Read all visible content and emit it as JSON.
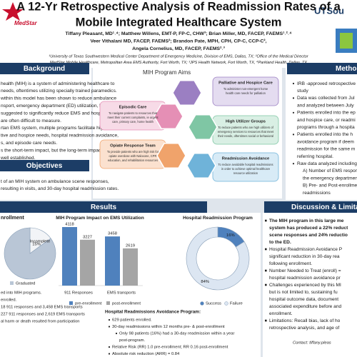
{
  "logos": {
    "left": "MedStar",
    "right": "UTSou"
  },
  "header": {
    "title": [
      "A 12-Yr Retrospective Analysis of Readmission Rates of a",
      "Mobile Integrated Healthcare System"
    ],
    "authors": [
      "Tiffany Pleasant, MD¹˒⁴; Matthew Willens, EMT-P, FP-C, CHW³; Brian Miller, MD, FACEP, FAEMS¹˒²˒⁴",
      "Veer Vithalani MD, FACEP, FAEMS²; Brandon Pate, MPH, CPH, CP-C, CCP-C²,",
      "Angela Cornelius, MD, FACEP, FAEMS²˒³"
    ],
    "affiliations": [
      "¹University of Texas Southwestern Medical Center Department of Emergency Medicine, Division of EMS, Dallas, TX; ²Office of the Medical Director",
      "MedStar Mobile Healthcare, Metropolitan Area EMS Authority, Fort Worth, TX; ³JPS Health Network, Fort Worth, TX, ⁴Parkland Health, Dallas, TX"
    ]
  },
  "background": {
    "heading": "Background",
    "lines": [
      "health (MIH) is a system of administering healthcare to",
      "needs, oftentimes utilizing specially trained paramedics.",
      "within this model has been shown to reduce ambulance",
      "nsport, emergency department (ED) utilization, hospital",
      "suggested to significantly reduce EMS and hospital costs,",
      "are often difficult to measure.",
      "rtan EMS system, multiple programs facilitate high",
      "tive and hospice needs, hospital readmission avoidance,",
      "s, and episode care needs.",
      "s the short-term impact, but the long-term impact of",
      "well established."
    ]
  },
  "objectives": {
    "heading": "Objectives",
    "lines": [
      "t of an MIH system on ambulance scene responses,",
      "resulting in visits, and 30-day hospital readmission rates."
    ]
  },
  "aims": {
    "title": "MIH Program Aims",
    "items": [
      {
        "title": "Palliative and Hospice Care",
        "text": [
          "To administer non-emergent home",
          "health care needs for palliation"
        ]
      },
      {
        "title": "Episodic Care",
        "text": [
          "To navigate patients to resources that",
          "meet their current complaints, ie urgent",
          "care, primary care, home health"
        ]
      },
      {
        "title": "High Utilizer Groups",
        "text": [
          "To reduce patients who are high utilizers of",
          "emergency services to resources that meet",
          "their needs, oftentimes social or behavioral"
        ]
      },
      {
        "title": "Opiate Response Team",
        "text": [
          "To provide patients who are high risk for",
          "opiate overdose with Naloxone, CPR",
          "education, and rehabilitation resources"
        ]
      },
      {
        "title": "Readmission Avoidance",
        "text": [
          "To reduce avoidable hospital readmissions",
          "in order to achieve optimal healthcare",
          "resource utilization"
        ]
      }
    ]
  },
  "methods": {
    "heading": "Methods",
    "lines": [
      "IRB -approved retrospective",
      "study",
      "Data was collected from Jul",
      "and analyzed between July",
      "Patients enrolled into the ep",
      "and hospice care, or readmi",
      "programs through a hospita",
      "Patients enrolled into the h",
      "avoidance program if deem",
      "readmission for the same m",
      "referring hospital.",
      "Raw data analyzed including",
      "A) Number of EMS respons",
      "the emergency department",
      "B) Pre- and Post-enrollment",
      "readmissions"
    ]
  },
  "results": {
    "heading": "Results",
    "enrollment": {
      "title": "nrollment",
      "slices": [
        {
          "name": "Incomplete",
          "value": 15,
          "value_label": "15%",
          "color": "#f2f4f7"
        },
        {
          "name": "Graduated",
          "value": 85,
          "color": "#b9c6d6"
        }
      ],
      "lines": [
        "ed into MIH programs.",
        "enrolled.",
        "18 911 responses and 3,458 EMS transports",
        "227 911 responses and 2,619 EMS transports",
        "al harm or death resulted from participation"
      ]
    },
    "utilization": {
      "type": "bar",
      "title": "MIH Program Impact on EMS Utilization",
      "categories": [
        "911 Responses",
        "EMS transports"
      ],
      "series": [
        {
          "name": "pre-enrollment",
          "color": "#4f81bd",
          "values": [
            4118,
            3458
          ]
        },
        {
          "name": "post-enrollment",
          "color": "#a5a5a5",
          "values": [
            3227,
            2619
          ]
        }
      ]
    },
    "readmission_chart": {
      "type": "donut",
      "title": "Hospital Readmission Program",
      "slices": [
        {
          "name": "Success",
          "value": 16,
          "value_label": "16%",
          "color": "#4f81bd"
        },
        {
          "name": "Failure",
          "value": 84,
          "value_label": "84%",
          "color": "#dce6f2"
        }
      ]
    },
    "readmission_program": {
      "title": "Hospital Readmissions Avoidance Program:",
      "bullets": [
        "629 patients enrolled.",
        "30-day readmissions within 12 months pre- & post-enrollment",
        "Only 98 patients (16%) had a 30-day readmission within a year",
        "post-program.",
        "Relative Risk (RR) 1.0 pre-enrollment; RR 0.16 post-enrollment",
        "Absolute risk reduction (ARR) = 0.84"
      ]
    }
  },
  "discussion": {
    "heading": "Discussion & Limitations",
    "lines": [
      "The MIH program in this large me",
      "system has produced a 22% reduct",
      "scene responses and 24% reductio",
      "to the ED.",
      "Hospital Readmission Avoidance P",
      "significant reduction in 30-day rea",
      "following enrollment.",
      "Number Needed to Treat (enroll) =",
      "hospital readmission avoidance pr",
      "Challenges experienced by this MI",
      "but is not limited to, sustaining fu",
      "hospital outcome data, document",
      "associated expenditure before and",
      "enrollment.",
      "Limitations: Recall bias, lack of ho",
      "retrospective analysis, and age of"
    ],
    "contact": "Contact: tiffany.pleas"
  }
}
